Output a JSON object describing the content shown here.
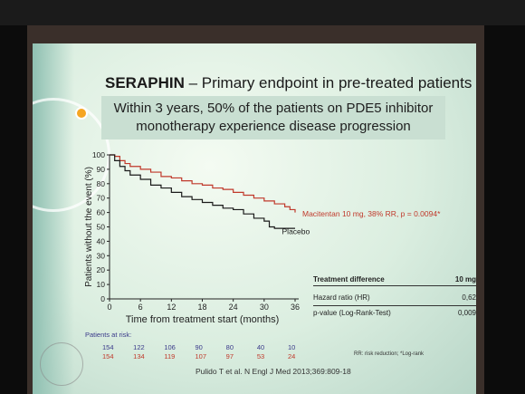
{
  "slide": {
    "title_brand": "SERAPHIN",
    "title_rest": " – Primary endpoint in pre-treated patients",
    "subtitle_line1": "Within 3 years, 50% of the patients on PDE5 inhibitor",
    "subtitle_line2": "monotherapy experience disease progression",
    "citation": "Pulido T et al. N Engl J Med 2013;369:809-18",
    "footnote": "RR: risk reduction; *Log-rank",
    "colors": {
      "macitentan": "#c0392b",
      "placebo": "#1a1a1a"
    }
  },
  "risk_table": {
    "label": "Patients at risk:",
    "macitentan": [
      "154",
      "122",
      "106",
      "90",
      "80",
      "40",
      "10"
    ],
    "placebo": [
      "154",
      "134",
      "119",
      "107",
      "97",
      "53",
      "24"
    ]
  },
  "treatment_table": {
    "header_label": "Treatment difference",
    "header_value": "10 mg",
    "rows": [
      {
        "label": "Hazard ratio (HR)",
        "value": "0,62"
      },
      {
        "label": "p-value (Log-Rank-Test)",
        "value": "0,009"
      }
    ]
  },
  "chart_data": {
    "type": "line",
    "xlabel": "Time from treatment start (months)",
    "ylabel": "Patients without the event (%)",
    "xlim": [
      0,
      36
    ],
    "ylim": [
      0,
      100
    ],
    "xticks": [
      "0",
      "6",
      "12",
      "18",
      "24",
      "30",
      "36"
    ],
    "yticks": [
      "0",
      "10",
      "20",
      "30",
      "40",
      "50",
      "60",
      "70",
      "80",
      "90",
      "100"
    ],
    "grid": false,
    "series": [
      {
        "name": "Macitentan 10 mg, 38% RR, p = 0.0094*",
        "points": [
          [
            0,
            100
          ],
          [
            1,
            99
          ],
          [
            2,
            96
          ],
          [
            3,
            94
          ],
          [
            4,
            92
          ],
          [
            6,
            90
          ],
          [
            8,
            88
          ],
          [
            10,
            85
          ],
          [
            12,
            84
          ],
          [
            14,
            82
          ],
          [
            16,
            80
          ],
          [
            18,
            79
          ],
          [
            20,
            77
          ],
          [
            22,
            76
          ],
          [
            24,
            74
          ],
          [
            26,
            72
          ],
          [
            28,
            70
          ],
          [
            30,
            68
          ],
          [
            32,
            66
          ],
          [
            34,
            64
          ],
          [
            35,
            62
          ],
          [
            36,
            60
          ]
        ]
      },
      {
        "name": "Placebo",
        "points": [
          [
            0,
            100
          ],
          [
            1,
            96
          ],
          [
            2,
            92
          ],
          [
            3,
            89
          ],
          [
            4,
            86
          ],
          [
            6,
            83
          ],
          [
            8,
            79
          ],
          [
            10,
            77
          ],
          [
            12,
            74
          ],
          [
            14,
            71
          ],
          [
            16,
            69
          ],
          [
            18,
            67
          ],
          [
            20,
            65
          ],
          [
            22,
            63
          ],
          [
            24,
            62
          ],
          [
            26,
            59
          ],
          [
            28,
            56
          ],
          [
            30,
            54
          ],
          [
            31,
            50
          ],
          [
            32,
            49
          ],
          [
            36,
            49
          ]
        ]
      }
    ]
  }
}
